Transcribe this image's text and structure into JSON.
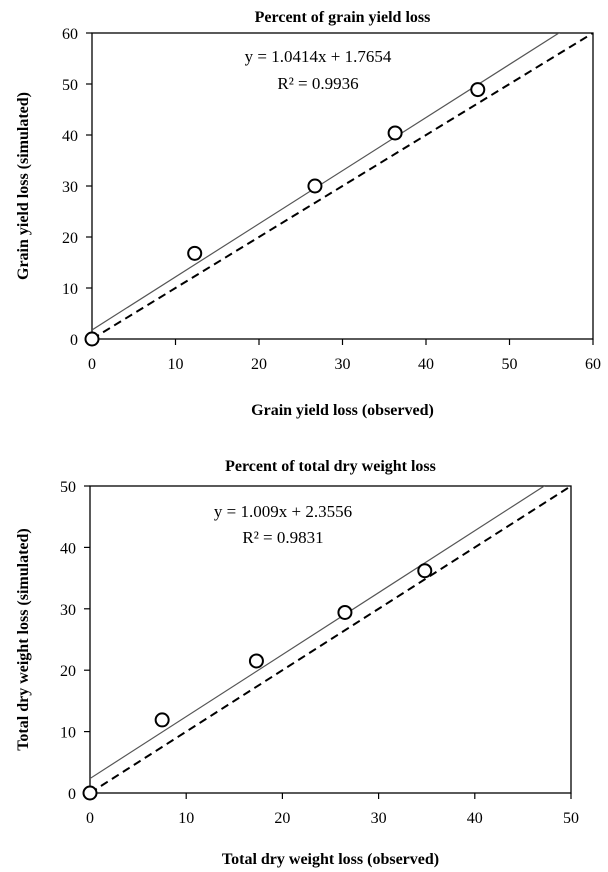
{
  "chart_data": [
    {
      "type": "scatter",
      "title": "Percent of grain yield loss",
      "xlabel": "Grain yield loss (observed)",
      "ylabel": "Grain yield loss (simulated)",
      "xlim": [
        0,
        60
      ],
      "ylim": [
        0,
        60
      ],
      "xticks": [
        0,
        10,
        20,
        30,
        40,
        50,
        60
      ],
      "yticks": [
        0,
        10,
        20,
        30,
        40,
        50,
        60
      ],
      "grid": false,
      "points": [
        {
          "x": 0,
          "y": 0
        },
        {
          "x": 12.3,
          "y": 16.8
        },
        {
          "x": 26.7,
          "y": 30.0
        },
        {
          "x": 36.3,
          "y": 40.4
        },
        {
          "x": 46.2,
          "y": 48.9
        }
      ],
      "regression": {
        "slope": 1.0414,
        "intercept": 1.7654
      },
      "reference_line": {
        "slope": 1,
        "intercept": 0,
        "style": "dashed"
      },
      "equation_label": "y = 1.0414x + 1.7654",
      "r2_label": "R² = 0.9936"
    },
    {
      "type": "scatter",
      "title": "Percent of total dry weight loss",
      "xlabel": "Total dry weight loss (observed)",
      "ylabel": "Total dry weight loss (simulated)",
      "xlim": [
        0,
        50
      ],
      "ylim": [
        0,
        50
      ],
      "xticks": [
        0,
        10,
        20,
        30,
        40,
        50
      ],
      "yticks": [
        0,
        10,
        20,
        30,
        40,
        50
      ],
      "grid": false,
      "points": [
        {
          "x": 0,
          "y": 0
        },
        {
          "x": 7.5,
          "y": 11.9
        },
        {
          "x": 17.3,
          "y": 21.5
        },
        {
          "x": 26.5,
          "y": 29.4
        },
        {
          "x": 34.8,
          "y": 36.2
        }
      ],
      "regression": {
        "slope": 1.009,
        "intercept": 2.3556
      },
      "reference_line": {
        "slope": 1,
        "intercept": 0,
        "style": "dashed"
      },
      "equation_label": "y = 1.009x + 2.3556",
      "r2_label": "R² = 0.9831"
    }
  ]
}
